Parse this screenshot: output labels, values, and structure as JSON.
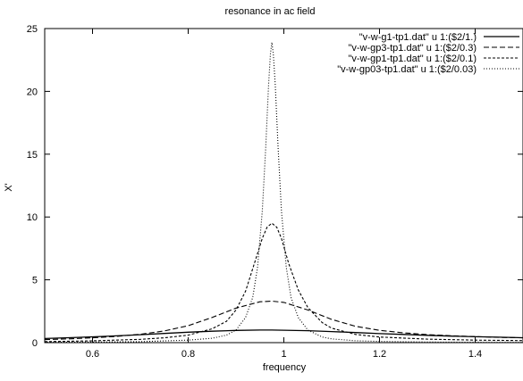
{
  "chart_data": {
    "type": "line",
    "title": "resonance in ac field",
    "xlabel": "frequency",
    "ylabel": "X'",
    "xlim": [
      0.5,
      1.5
    ],
    "ylim": [
      0,
      25
    ],
    "xticks": [
      0.6,
      0.8,
      1,
      1.2,
      1.4
    ],
    "xtick_labels": [
      "0.6",
      "0.8",
      "1",
      "1.2",
      "1.4"
    ],
    "yticks": [
      0,
      5,
      10,
      15,
      20,
      25
    ],
    "ytick_labels": [
      "0",
      "5",
      "10",
      "15",
      "20",
      "25"
    ],
    "grid": false,
    "legend_position": "top-right",
    "series": [
      {
        "name": "\"v-w-g1-tp1.dat\" u 1:($2/1.)",
        "style": "solid",
        "x": [
          0.5,
          0.55,
          0.6,
          0.65,
          0.7,
          0.75,
          0.8,
          0.85,
          0.9,
          0.95,
          0.975,
          1.0,
          1.05,
          1.1,
          1.15,
          1.2,
          1.25,
          1.3,
          1.35,
          1.4,
          1.45,
          1.5
        ],
        "y": [
          0.33,
          0.39,
          0.46,
          0.54,
          0.63,
          0.73,
          0.83,
          0.91,
          0.97,
          1.0,
          1.0,
          0.99,
          0.95,
          0.88,
          0.8,
          0.72,
          0.65,
          0.58,
          0.52,
          0.47,
          0.43,
          0.39
        ]
      },
      {
        "name": "\"v-w-gp3-tp1.dat\" u 1:($2/0.3)",
        "style": "dashed",
        "x": [
          0.5,
          0.55,
          0.6,
          0.65,
          0.7,
          0.75,
          0.8,
          0.85,
          0.9,
          0.95,
          0.975,
          1.0,
          1.05,
          1.1,
          1.15,
          1.2,
          1.25,
          1.3,
          1.35,
          1.4,
          1.45,
          1.5
        ],
        "y": [
          0.24,
          0.3,
          0.38,
          0.5,
          0.67,
          0.93,
          1.35,
          2.0,
          2.75,
          3.25,
          3.3,
          3.2,
          2.6,
          1.85,
          1.3,
          0.98,
          0.78,
          0.64,
          0.55,
          0.48,
          0.42,
          0.38
        ]
      },
      {
        "name": "\"v-w-gp1-tp1.dat\" u 1:($2/0.1)",
        "style": "short-dashed",
        "x": [
          0.5,
          0.6,
          0.7,
          0.75,
          0.8,
          0.85,
          0.88,
          0.9,
          0.92,
          0.94,
          0.955,
          0.965,
          0.975,
          0.985,
          0.995,
          1.01,
          1.03,
          1.05,
          1.08,
          1.1,
          1.15,
          1.2,
          1.3,
          1.4,
          1.5
        ],
        "y": [
          0.08,
          0.14,
          0.26,
          0.38,
          0.6,
          1.1,
          1.7,
          2.6,
          4.1,
          6.5,
          8.3,
          9.2,
          9.5,
          9.2,
          8.3,
          6.3,
          4.2,
          2.8,
          1.6,
          1.15,
          0.65,
          0.45,
          0.28,
          0.2,
          0.16
        ]
      },
      {
        "name": "\"v-w-gp03-tp1.dat\" u 1:($2/0.03)",
        "style": "dotted",
        "x": [
          0.5,
          0.6,
          0.7,
          0.8,
          0.85,
          0.88,
          0.9,
          0.92,
          0.935,
          0.945,
          0.955,
          0.962,
          0.968,
          0.972,
          0.975,
          0.978,
          0.982,
          0.988,
          0.995,
          1.005,
          1.015,
          1.03,
          1.05,
          1.08,
          1.1,
          1.15,
          1.2,
          1.3,
          1.4,
          1.5
        ],
        "y": [
          0.02,
          0.04,
          0.08,
          0.2,
          0.35,
          0.6,
          1.0,
          2.0,
          3.6,
          6.0,
          10.5,
          15.5,
          20.5,
          23.0,
          23.9,
          23.0,
          20.5,
          15.5,
          10.5,
          6.0,
          3.6,
          2.0,
          1.0,
          0.45,
          0.3,
          0.15,
          0.1,
          0.05,
          0.03,
          0.02
        ]
      }
    ]
  }
}
